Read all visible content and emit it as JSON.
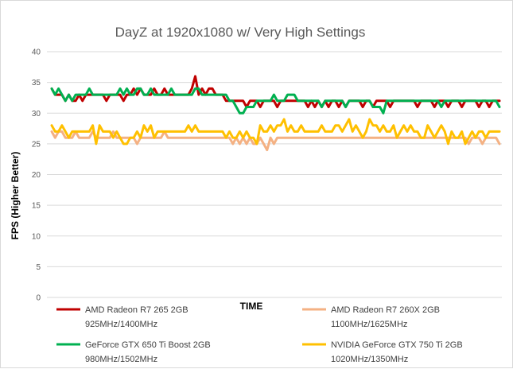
{
  "chart_data": {
    "type": "line",
    "title": "DayZ at 1920x1080 w/ Very High Settings",
    "xlabel": "TIME",
    "ylabel": "FPS (Higher Better)",
    "ylim": [
      0,
      40
    ],
    "yticks": [
      0,
      5,
      10,
      15,
      20,
      25,
      30,
      35,
      40
    ],
    "grid": true,
    "legend_position": "bottom",
    "series": [
      {
        "name": "AMD Radeon R7 265 2GB",
        "clock": "925MHz/1400MHz",
        "color": "#c00000",
        "values": [
          34,
          33,
          33,
          33,
          32,
          33,
          32,
          32,
          33,
          32,
          33,
          33,
          33,
          33,
          33,
          33,
          32,
          33,
          33,
          33,
          33,
          32,
          33,
          33,
          34,
          33,
          34,
          33,
          33,
          33,
          34,
          33,
          33,
          34,
          33,
          33,
          33,
          33,
          33,
          33,
          33,
          34,
          36,
          33,
          34,
          33,
          34,
          34,
          33,
          33,
          33,
          32,
          32,
          32,
          32,
          32,
          32,
          31,
          32,
          32,
          32,
          31,
          32,
          32,
          32,
          32,
          31,
          32,
          32,
          32,
          32,
          32,
          32,
          32,
          32,
          31,
          32,
          31,
          32,
          31,
          32,
          31,
          32,
          32,
          31,
          32,
          31,
          32,
          32,
          32,
          32,
          31,
          32,
          32,
          31,
          32,
          32,
          32,
          32,
          31,
          32,
          32,
          32,
          32,
          32,
          32,
          32,
          31,
          32,
          32,
          32,
          32,
          31,
          32,
          32,
          32,
          31,
          32,
          32,
          32,
          31,
          32,
          32,
          32,
          32,
          31,
          32,
          32,
          31,
          32,
          32,
          32
        ]
      },
      {
        "name": "AMD Radeon R7 260X 2GB",
        "clock": "1100MHz/1625MHz",
        "color": "#f4b183",
        "values": [
          27,
          26,
          27,
          27,
          26,
          26,
          26,
          27,
          26,
          26,
          26,
          26,
          27,
          26,
          26,
          26,
          26,
          26,
          27,
          26,
          26,
          26,
          26,
          26,
          26,
          25,
          26,
          26,
          26,
          26,
          26,
          26,
          26,
          27,
          26,
          26,
          26,
          26,
          26,
          26,
          26,
          26,
          26,
          26,
          26,
          26,
          26,
          26,
          26,
          26,
          26,
          26,
          26,
          25,
          26,
          25,
          26,
          25,
          26,
          25,
          25,
          26,
          25,
          24,
          26,
          25,
          26,
          26,
          26,
          26,
          26,
          26,
          26,
          26,
          26,
          26,
          26,
          26,
          26,
          26,
          26,
          26,
          26,
          26,
          26,
          26,
          26,
          26,
          26,
          26,
          26,
          26,
          26,
          26,
          26,
          26,
          26,
          26,
          26,
          26,
          26,
          26,
          26,
          26,
          26,
          26,
          26,
          26,
          26,
          26,
          26,
          26,
          26,
          26,
          26,
          26,
          26,
          26,
          26,
          26,
          26,
          26,
          25,
          26,
          26,
          26,
          25,
          26,
          26,
          26,
          26,
          25
        ]
      },
      {
        "name": "GeForce GTX 650 Ti Boost 2GB",
        "clock": "980MHz/1502MHz",
        "color": "#00b050",
        "values": [
          34,
          33,
          34,
          33,
          32,
          33,
          32,
          33,
          33,
          33,
          33,
          34,
          33,
          33,
          33,
          33,
          33,
          33,
          33,
          33,
          34,
          33,
          34,
          33,
          33,
          34,
          34,
          33,
          33,
          34,
          33,
          33,
          33,
          33,
          33,
          34,
          33,
          33,
          33,
          33,
          33,
          33,
          34,
          34,
          33,
          33,
          33,
          33,
          33,
          33,
          33,
          33,
          32,
          32,
          31,
          30,
          30,
          31,
          31,
          31,
          32,
          32,
          32,
          32,
          32,
          33,
          32,
          32,
          32,
          33,
          33,
          33,
          32,
          32,
          32,
          32,
          32,
          32,
          32,
          31,
          32,
          32,
          32,
          32,
          32,
          32,
          31,
          32,
          32,
          32,
          32,
          32,
          32,
          32,
          31,
          31,
          31,
          30,
          32,
          32,
          32,
          32,
          32,
          32,
          32,
          32,
          32,
          32,
          32,
          32,
          32,
          32,
          32,
          32,
          31,
          32,
          32,
          32,
          32,
          32,
          32,
          32,
          32,
          32,
          32,
          32,
          32,
          32,
          32,
          32,
          32,
          31
        ]
      },
      {
        "name": "NVIDIA GeForce GTX 750 Ti 2GB",
        "clock": "1020MHz/1350MHz",
        "color": "#ffc000",
        "values": [
          28,
          27,
          27,
          28,
          27,
          26,
          27,
          27,
          27,
          27,
          27,
          27,
          28,
          25,
          28,
          27,
          27,
          27,
          26,
          27,
          26,
          25,
          25,
          26,
          26,
          27,
          26,
          28,
          27,
          28,
          26,
          27,
          27,
          27,
          27,
          27,
          27,
          27,
          27,
          27,
          28,
          27,
          28,
          27,
          27,
          27,
          27,
          27,
          27,
          27,
          27,
          26,
          27,
          26,
          26,
          27,
          26,
          27,
          26,
          26,
          25,
          28,
          27,
          27,
          28,
          27,
          28,
          28,
          29,
          27,
          28,
          27,
          27,
          28,
          27,
          27,
          27,
          27,
          27,
          28,
          27,
          27,
          27,
          28,
          28,
          27,
          28,
          29,
          27,
          28,
          27,
          26,
          27,
          29,
          28,
          28,
          27,
          28,
          27,
          27,
          28,
          26,
          27,
          28,
          27,
          28,
          27,
          27,
          26,
          26,
          28,
          27,
          26,
          27,
          28,
          27,
          25,
          27,
          26,
          26,
          27,
          25,
          26,
          27,
          26,
          27,
          27,
          26,
          27,
          27,
          27,
          27
        ]
      }
    ]
  }
}
